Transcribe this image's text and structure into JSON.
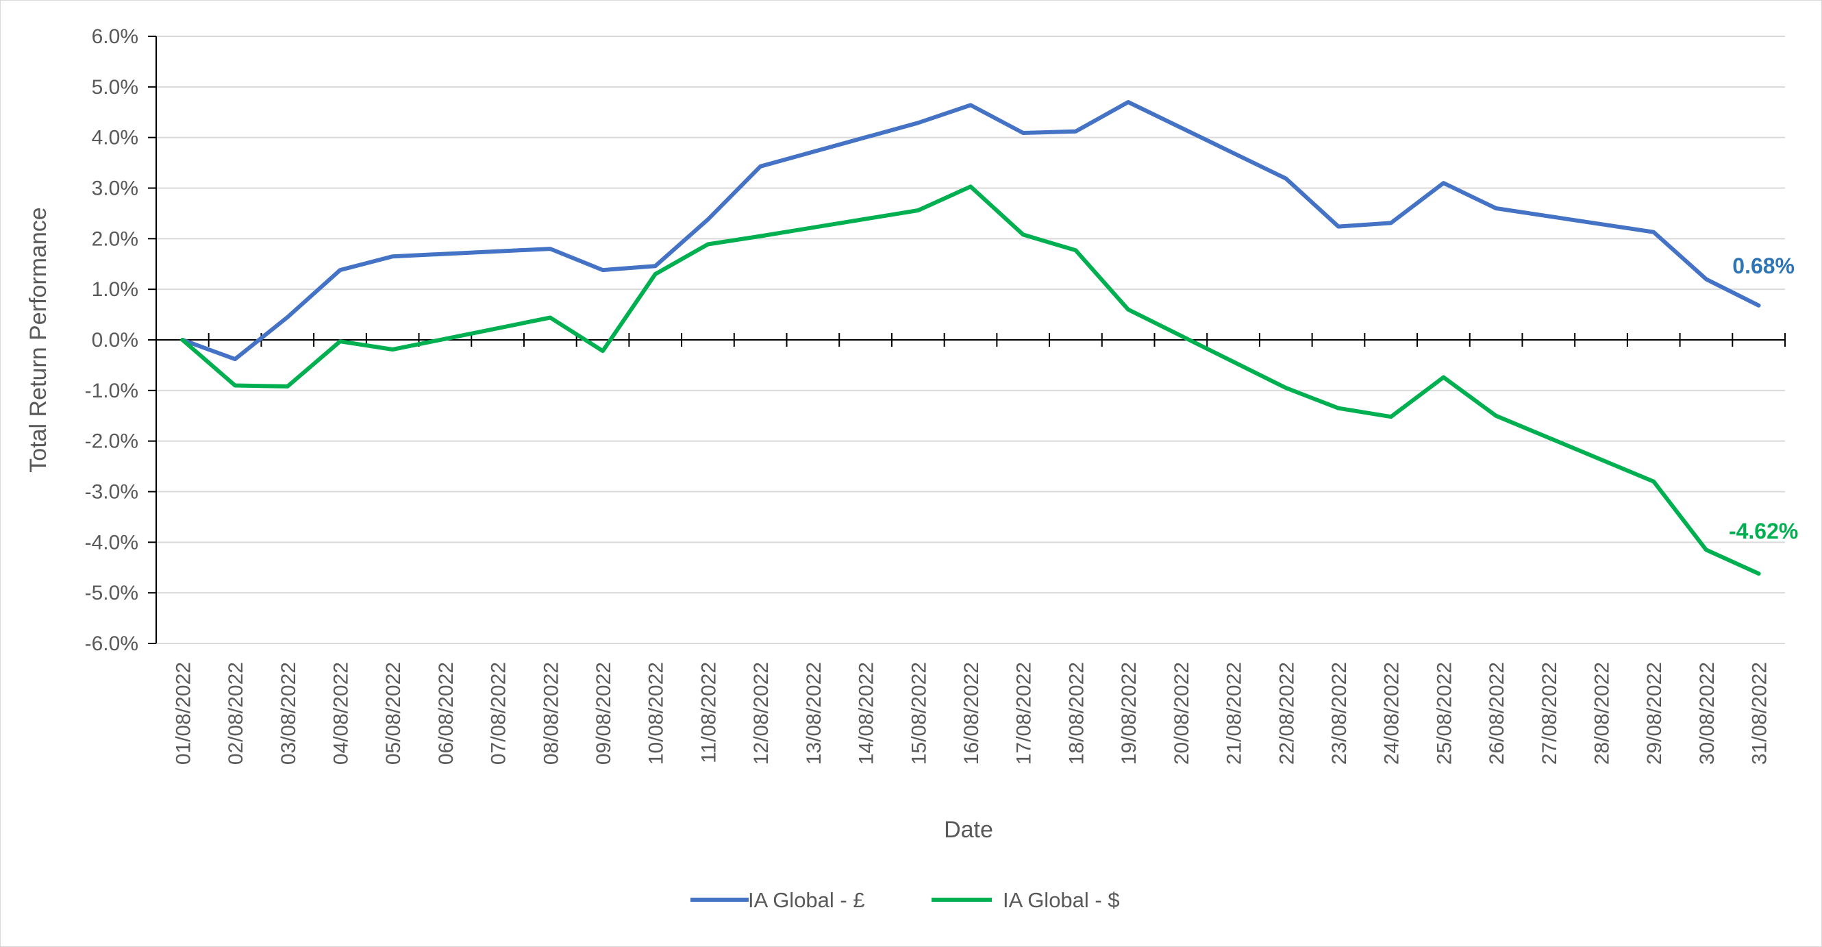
{
  "chart_data": {
    "type": "line",
    "title": "",
    "xlabel": "Date",
    "ylabel": "Total Return Performance",
    "ylim": [
      -6,
      6
    ],
    "y_ticks": [
      "6.0%",
      "5.0%",
      "4.0%",
      "3.0%",
      "2.0%",
      "1.0%",
      "0.0%",
      "-1.0%",
      "-2.0%",
      "-3.0%",
      "-4.0%",
      "-5.0%",
      "-6.0%"
    ],
    "y_tick_values": [
      6,
      5,
      4,
      3,
      2,
      1,
      0,
      -1,
      -2,
      -3,
      -4,
      -5,
      -6
    ],
    "grid": true,
    "legend_position": "bottom",
    "categories": [
      "01/08/2022",
      "02/08/2022",
      "03/08/2022",
      "04/08/2022",
      "05/08/2022",
      "06/08/2022",
      "07/08/2022",
      "08/08/2022",
      "09/08/2022",
      "10/08/2022",
      "11/08/2022",
      "12/08/2022",
      "13/08/2022",
      "14/08/2022",
      "15/08/2022",
      "16/08/2022",
      "17/08/2022",
      "18/08/2022",
      "19/08/2022",
      "20/08/2022",
      "21/08/2022",
      "22/08/2022",
      "23/08/2022",
      "24/08/2022",
      "25/08/2022",
      "26/08/2022",
      "27/08/2022",
      "28/08/2022",
      "29/08/2022",
      "30/08/2022",
      "31/08/2022"
    ],
    "series": [
      {
        "name": "IA Global - £",
        "color": "#4472C4",
        "end_label": "0.68%",
        "end_label_color": "#2E75B6",
        "points": [
          {
            "x": "01/08/2022",
            "y": 0.0
          },
          {
            "x": "02/08/2022",
            "y": -0.38
          },
          {
            "x": "03/08/2022",
            "y": 0.45
          },
          {
            "x": "04/08/2022",
            "y": 1.38
          },
          {
            "x": "05/08/2022",
            "y": 1.65
          },
          {
            "x": "08/08/2022",
            "y": 1.8
          },
          {
            "x": "09/08/2022",
            "y": 1.38
          },
          {
            "x": "10/08/2022",
            "y": 1.46
          },
          {
            "x": "11/08/2022",
            "y": 2.38
          },
          {
            "x": "12/08/2022",
            "y": 3.43
          },
          {
            "x": "15/08/2022",
            "y": 4.29
          },
          {
            "x": "16/08/2022",
            "y": 4.64
          },
          {
            "x": "17/08/2022",
            "y": 4.09
          },
          {
            "x": "18/08/2022",
            "y": 4.12
          },
          {
            "x": "19/08/2022",
            "y": 4.7
          },
          {
            "x": "22/08/2022",
            "y": 3.19
          },
          {
            "x": "23/08/2022",
            "y": 2.24
          },
          {
            "x": "24/08/2022",
            "y": 2.31
          },
          {
            "x": "25/08/2022",
            "y": 3.1
          },
          {
            "x": "26/08/2022",
            "y": 2.6
          },
          {
            "x": "29/08/2022",
            "y": 2.13
          },
          {
            "x": "30/08/2022",
            "y": 1.2
          },
          {
            "x": "31/08/2022",
            "y": 0.68
          }
        ]
      },
      {
        "name": "IA Global - $",
        "color": "#00B050",
        "end_label": "-4.62%",
        "end_label_color": "#00B050",
        "points": [
          {
            "x": "01/08/2022",
            "y": 0.0
          },
          {
            "x": "02/08/2022",
            "y": -0.9
          },
          {
            "x": "03/08/2022",
            "y": -0.92
          },
          {
            "x": "04/08/2022",
            "y": -0.03
          },
          {
            "x": "05/08/2022",
            "y": -0.19
          },
          {
            "x": "08/08/2022",
            "y": 0.44
          },
          {
            "x": "09/08/2022",
            "y": -0.22
          },
          {
            "x": "10/08/2022",
            "y": 1.3
          },
          {
            "x": "11/08/2022",
            "y": 1.89
          },
          {
            "x": "12/08/2022",
            "y": 2.05
          },
          {
            "x": "15/08/2022",
            "y": 2.56
          },
          {
            "x": "16/08/2022",
            "y": 3.03
          },
          {
            "x": "17/08/2022",
            "y": 2.08
          },
          {
            "x": "18/08/2022",
            "y": 1.77
          },
          {
            "x": "19/08/2022",
            "y": 0.6
          },
          {
            "x": "22/08/2022",
            "y": -0.95
          },
          {
            "x": "23/08/2022",
            "y": -1.35
          },
          {
            "x": "24/08/2022",
            "y": -1.52
          },
          {
            "x": "25/08/2022",
            "y": -0.74
          },
          {
            "x": "26/08/2022",
            "y": -1.5
          },
          {
            "x": "29/08/2022",
            "y": -2.8
          },
          {
            "x": "30/08/2022",
            "y": -4.15
          },
          {
            "x": "31/08/2022",
            "y": -4.62
          }
        ]
      }
    ]
  }
}
